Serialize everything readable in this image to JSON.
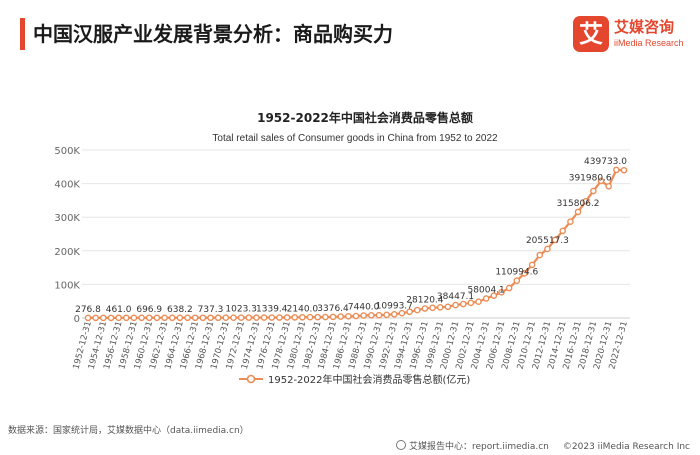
{
  "header": {
    "title": "中国汉服产业发展背景分析：商品购买力"
  },
  "brand": {
    "logo_char": "艾",
    "name": "艾媒咨询",
    "sub": "iiMedia Research"
  },
  "chart_data": {
    "type": "line",
    "title": "1952-2022年中国社会消费品零售总额",
    "subtitle": "Total retail sales of Consumer goods in China from 1952 to 2022",
    "legend": "1952-2022年中国社会消费品零售总额(亿元)",
    "legend_position": "bottom",
    "color": "#ec8c55",
    "ylim": [
      0,
      500000
    ],
    "yticks": [
      0,
      100000,
      200000,
      300000,
      400000,
      500000
    ],
    "ytick_labels": [
      "0",
      "100K",
      "200K",
      "300K",
      "400K",
      "500K"
    ],
    "grid": true,
    "x_tick_labels": [
      "1952-12-31",
      "1954-12-31",
      "1956-12-31",
      "1958-12-31",
      "1960-12-31",
      "1962-12-31",
      "1964-12-31",
      "1966-12-31",
      "1968-12-31",
      "1970-12-31",
      "1972-12-31",
      "1974-12-31",
      "1976-12-31",
      "1978-12-31",
      "1980-12-31",
      "1982-12-31",
      "1984-12-31",
      "1986-12-31",
      "1988-12-31",
      "1990-12-31",
      "1992-12-31",
      "1994-12-31",
      "1996-12-31",
      "1998-12-31",
      "2000-12-31",
      "2002-12-31",
      "2004-12-31",
      "2006-12-31",
      "2008-12-31",
      "2010-12-31",
      "2012-12-31",
      "2014-12-31",
      "2016-12-31",
      "2018-12-31",
      "2020-12-31",
      "2022-12-31"
    ],
    "x": [
      1952,
      1953,
      1954,
      1955,
      1956,
      1957,
      1958,
      1959,
      1960,
      1961,
      1962,
      1963,
      1964,
      1965,
      1966,
      1967,
      1968,
      1969,
      1970,
      1971,
      1972,
      1973,
      1974,
      1975,
      1976,
      1977,
      1978,
      1979,
      1980,
      1981,
      1982,
      1983,
      1984,
      1985,
      1986,
      1987,
      1988,
      1989,
      1990,
      1991,
      1992,
      1993,
      1994,
      1995,
      1996,
      1997,
      1998,
      1999,
      2000,
      2001,
      2002,
      2003,
      2004,
      2005,
      2006,
      2007,
      2008,
      2009,
      2010,
      2011,
      2012,
      2013,
      2014,
      2015,
      2016,
      2017,
      2018,
      2019,
      2020,
      2021,
      2022
    ],
    "values": [
      276.8,
      349,
      381,
      392,
      461,
      474,
      548,
      638,
      696.9,
      607,
      604,
      605,
      638,
      670,
      732,
      770,
      737,
      801,
      858,
      929,
      1023.3,
      1107,
      1163,
      1271,
      1339.4,
      1433,
      1558,
      1800,
      2140,
      2350,
      2570,
      2849,
      3376.4,
      4305,
      4950,
      5820,
      7440,
      8101,
      8300,
      9416,
      10993.7,
      14270,
      18623,
      23614,
      28120.4,
      30300,
      31800,
      33400,
      38447.1,
      41500,
      45200,
      48500,
      58004.1,
      66500,
      76400,
      89200,
      110994.6,
      132700,
      158000,
      187200,
      205517.3,
      232300,
      259200,
      286600,
      315806.2,
      347300,
      377800,
      408000,
      391980.6,
      440800,
      439733.0
    ],
    "labels": [
      {
        "year": 1952,
        "text": "276.8"
      },
      {
        "year": 1956,
        "text": "461.0"
      },
      {
        "year": 1960,
        "text": "696.9"
      },
      {
        "year": 1964,
        "text": "638.2"
      },
      {
        "year": 1968,
        "text": "737.3"
      },
      {
        "year": 1972,
        "text": "1023.3"
      },
      {
        "year": 1976,
        "text": "1339.4"
      },
      {
        "year": 1980,
        "text": "2140.0"
      },
      {
        "year": 1984,
        "text": "3376.4"
      },
      {
        "year": 1988,
        "text": "7440.0"
      },
      {
        "year": 1992,
        "text": "10993.7"
      },
      {
        "year": 1996,
        "text": "28120.4"
      },
      {
        "year": 2000,
        "text": "38447.1"
      },
      {
        "year": 2004,
        "text": "58004.1"
      },
      {
        "year": 2008,
        "text": "110994.6"
      },
      {
        "year": 2012,
        "text": "205517.3"
      },
      {
        "year": 2016,
        "text": "315806.2"
      },
      {
        "year": 2020,
        "text": "391980.6"
      },
      {
        "year": 2022,
        "text": "439733.0"
      }
    ]
  },
  "footer": {
    "source": "数据来源：国家统计局，艾媒数据中心（data.iimedia.cn）",
    "report_center": "艾媒报告中心：report.iimedia.cn",
    "copyright": "©2023  iiMedia Research  Inc"
  }
}
